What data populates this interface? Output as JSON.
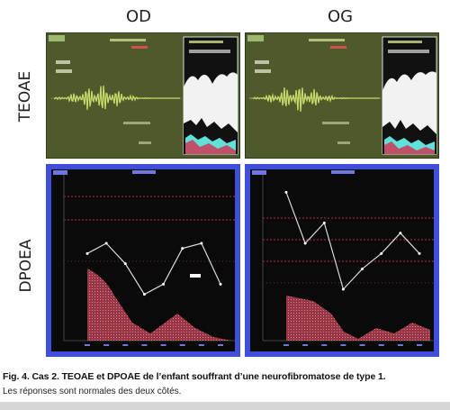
{
  "columns": {
    "left": "OD",
    "right": "OG"
  },
  "rows": {
    "top": "TEOAE",
    "bottom": "DPOEA"
  },
  "caption": {
    "title": "Fig. 4. Cas 2. TEOAE et DPOAE de l’enfant souffrant d’une neurofibromatose de type 1.",
    "subtitle": "Les réponses sont normales des deux côtés."
  },
  "colors": {
    "teoae_bg": "#4e5a2c",
    "dpoae_frame": "#3f4fd8",
    "waveform": "#c8d86a",
    "noise_fill": "#c0506a",
    "response_fill": "#5fe0d8",
    "dp_line": "#d8d8d8"
  },
  "chart_data": [
    {
      "type": "line",
      "panel": "DPOEA OD",
      "x": [
        1,
        2,
        3,
        4,
        5,
        6,
        7,
        8
      ],
      "values": [
        10,
        12,
        8,
        2,
        4,
        11,
        12,
        4
      ]
    },
    {
      "type": "line",
      "panel": "DPOEA OG",
      "x": [
        1,
        2,
        3,
        4,
        5,
        6,
        7,
        8
      ],
      "values": [
        22,
        12,
        16,
        3,
        7,
        10,
        14,
        10
      ]
    }
  ]
}
